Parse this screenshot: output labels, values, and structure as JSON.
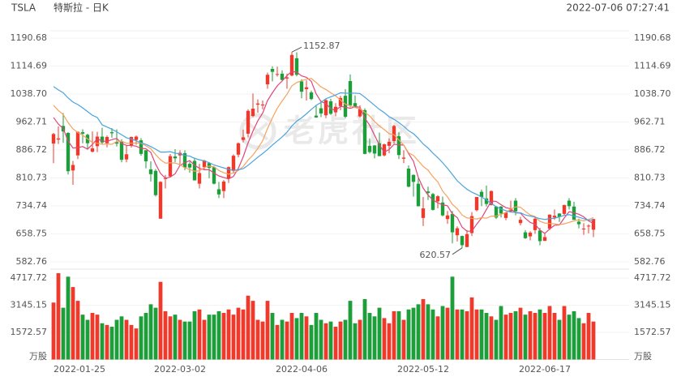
{
  "chart_data": {
    "type": "candlestick",
    "symbol": "TSLA",
    "name": "特斯拉 - 日K",
    "timestamp": "2022-07-06 07:27:41",
    "watermark": "老虎社区",
    "categories": [
      null,
      "2022-01-25",
      null,
      null,
      null,
      null,
      null,
      null,
      null,
      null,
      null,
      null,
      null,
      null,
      null,
      null,
      null,
      null,
      null,
      null,
      null,
      null,
      null,
      null,
      null,
      null,
      "2022-03-02",
      null,
      null,
      null,
      null,
      null,
      null,
      null,
      null,
      null,
      null,
      null,
      null,
      null,
      null,
      null,
      null,
      null,
      null,
      null,
      null,
      null,
      null,
      null,
      null,
      "2022-04-06",
      null,
      null,
      null,
      null,
      null,
      null,
      null,
      null,
      null,
      null,
      null,
      null,
      null,
      null,
      null,
      null,
      null,
      null,
      null,
      null,
      null,
      null,
      null,
      null,
      "2022-05-12",
      null,
      null,
      null,
      null,
      null,
      null,
      null,
      null,
      null,
      null,
      null,
      null,
      null,
      null,
      null,
      null,
      null,
      null,
      null,
      null,
      null,
      null,
      null,
      null,
      "2022-06-17",
      null,
      null,
      null,
      null,
      null,
      null,
      null,
      null,
      null,
      null
    ],
    "open": [
      904,
      915,
      952,
      933,
      831,
      872,
      935,
      928,
      882,
      897,
      923,
      905,
      935,
      908,
      909,
      861,
      900,
      914,
      913,
      886,
      834,
      830,
      700,
      809,
      815,
      869,
      872,
      878,
      849,
      857,
      795,
      840,
      851,
      840,
      780,
      775,
      809,
      830,
      874,
      914,
      931,
      979,
      1010,
      1009,
      1065,
      1107,
      1091,
      1094,
      1081,
      1089,
      1136,
      1073,
      1052,
      1043,
      980,
      1000,
      981,
      1019,
      989,
      1006,
      1034,
      1074,
      1014,
      978,
      995,
      898,
      899,
      905,
      872,
      898,
      911,
      924,
      863,
      836,
      819,
      795,
      702,
      774,
      767,
      747,
      744,
      699,
      713,
      655,
      653,
      623,
      661,
      723,
      773,
      755,
      737,
      733,
      733,
      702,
      720,
      749,
      688,
      663,
      652,
      669,
      668,
      640,
      673,
      703,
      714,
      713,
      749,
      733,
      692,
      673,
      681,
      670
    ],
    "high": [
      933,
      951,
      987,
      935,
      857,
      937,
      943,
      931,
      937,
      936,
      947,
      926,
      946,
      943,
      916,
      898,
      923,
      926,
      919,
      886,
      856,
      835,
      802,
      819,
      876,
      889,
      886,
      886,
      855,
      866,
      849,
      860,
      854,
      843,
      800,
      805,
      842,
      875,
      907,
      942,
      997,
      1040,
      1024,
      1021,
      1097,
      1114,
      1113,
      1103,
      1094,
      1152.87,
      1152,
      1079,
      1076,
      1048,
      1008,
      1021,
      1026,
      1026,
      1014,
      1034,
      1052,
      1092,
      1035,
      1008,
      1000,
      918,
      900,
      934,
      904,
      918,
      955,
      935,
      886,
      845,
      820,
      810,
      759,
      787,
      770,
      764,
      760,
      721,
      721,
      679,
      654,
      669,
      718,
      759,
      779,
      790,
      777,
      734,
      734,
      719,
      749,
      756,
      705,
      669,
      666,
      706,
      675,
      662,
      712,
      725,
      715,
      738,
      756,
      746,
      700,
      688,
      685,
      700
    ],
    "low": [
      851,
      903,
      906,
      820,
      792,
      862,
      905,
      889,
      880,
      881,
      902,
      894,
      920,
      896,
      853,
      853,
      893,
      901,
      871,
      837,
      801,
      760,
      700,
      782,
      814,
      853,
      844,
      832,
      825,
      804,
      782,
      832,
      810,
      793,
      756,
      756,
      797,
      825,
      867,
      907,
      921,
      976,
      988,
      997,
      1053,
      1073,
      1086,
      1076,
      1053,
      1087,
      1087,
      1027,
      1021,
      1022,
      974,
      976,
      973,
      982,
      978,
      995,
      973,
      1003,
      1003,
      975,
      875,
      877,
      864,
      870,
      869,
      878,
      904,
      862,
      851,
      785,
      760,
      733,
      680,
      751,
      722,
      728,
      706,
      686,
      633,
      638,
      620.57,
      623,
      653,
      720,
      734,
      733,
      736,
      699,
      703,
      696,
      718,
      709,
      682,
      645,
      641,
      659,
      628,
      639,
      669,
      697,
      691,
      709,
      725,
      697,
      674,
      656,
      660,
      650
    ],
    "close": [
      930,
      918,
      937,
      829,
      846,
      936,
      931,
      905,
      891,
      923,
      907,
      922,
      932,
      904,
      860,
      875,
      922,
      923,
      876,
      856,
      821,
      764,
      800,
      810,
      870,
      864,
      879,
      839,
      839,
      804,
      824,
      858,
      838,
      795,
      766,
      801,
      840,
      871,
      905,
      921,
      993,
      999,
      1013,
      1010,
      1091,
      1099,
      1093,
      1077,
      1084,
      1145,
      1091,
      1045,
      1057,
      1025,
      975,
      986,
      1022,
      985,
      1004,
      1028,
      977,
      1008,
      1005,
      998,
      876,
      881,
      877,
      870,
      902,
      909,
      952,
      873,
      866,
      787,
      800,
      734,
      728,
      770,
      724,
      761,
      709,
      709,
      663,
      674,
      628,
      658,
      707,
      759,
      759,
      740,
      775,
      703,
      714,
      717,
      725,
      720,
      697,
      647,
      662,
      700,
      639,
      650,
      711,
      708,
      705,
      737,
      734,
      697,
      685,
      673,
      681,
      699
    ],
    "volume": [
      3300,
      5000,
      3000,
      4800,
      4200,
      3400,
      2600,
      2300,
      2700,
      2600,
      2100,
      2000,
      1900,
      2300,
      2500,
      2300,
      2000,
      1800,
      2500,
      2700,
      3200,
      3000,
      4500,
      2800,
      2500,
      2600,
      2300,
      2200,
      2200,
      2800,
      2900,
      2300,
      2600,
      2600,
      2800,
      2700,
      2900,
      2600,
      3000,
      2900,
      3700,
      3400,
      2300,
      2200,
      3400,
      2700,
      2000,
      2300,
      2200,
      2700,
      2400,
      2700,
      2500,
      2000,
      2700,
      2300,
      2100,
      2200,
      1900,
      2200,
      2300,
      3400,
      2100,
      2300,
      3500,
      2700,
      2500,
      3000,
      2400,
      2100,
      2800,
      2800,
      2300,
      2900,
      3000,
      3200,
      3500,
      3200,
      2900,
      2500,
      3100,
      3000,
      4800,
      2900,
      2900,
      2800,
      3600,
      2900,
      2900,
      2700,
      2500,
      2300,
      3100,
      2600,
      2700,
      2800,
      3000,
      2600,
      2800,
      2700,
      2900,
      2700,
      3100,
      2700,
      2300,
      3100,
      2600,
      2800,
      2400,
      2100,
      2700,
      2200
    ],
    "ma": [
      {
        "color": "#e0457b",
        "values": [
          975,
          957,
          945,
          911,
          892,
          893,
          896,
          889,
          902,
          917,
          911,
          910,
          915,
          918,
          905,
          899,
          899,
          897,
          891,
          890,
          880,
          848,
          823,
          810,
          813,
          822,
          845,
          852,
          858,
          845,
          837,
          833,
          833,
          824,
          816,
          812,
          808,
          815,
          837,
          868,
          906,
          938,
          966,
          987,
          1021,
          1042,
          1061,
          1074,
          1089,
          1100,
          1098,
          1088,
          1084,
          1073,
          1039,
          1018,
          1013,
          999,
          994,
          1005,
          1003,
          1000,
          1004,
          1003,
          973,
          954,
          927,
          900,
          881,
          888,
          902,
          901,
          900,
          877,
          856,
          812,
          783,
          764,
          751,
          743,
          738,
          735,
          713,
          703,
          677,
          666,
          666,
          685,
          702,
          725,
          748,
          747,
          738,
          730,
          727,
          716,
          715,
          701,
          690,
          685,
          669,
          660,
          672,
          682,
          683,
          702,
          719,
          716,
          712,
          705,
          694,
          687
        ]
      },
      {
        "color": "#f5a25d",
        "values": [
          1008,
          994,
          983,
          961,
          944,
          934,
          927,
          917,
          907,
          905,
          902,
          903,
          902,
          910,
          911,
          905,
          905,
          906,
          905,
          898,
          890,
          874,
          860,
          851,
          852,
          851,
          847,
          838,
          834,
          829,
          830,
          839,
          843,
          841,
          831,
          825,
          821,
          824,
          831,
          842,
          859,
          873,
          891,
          912,
          945,
          974,
          1000,
          1020,
          1038,
          1061,
          1070,
          1075,
          1079,
          1081,
          1070,
          1058,
          1051,
          1042,
          1034,
          1022,
          1011,
          1007,
          1002,
          999,
          989,
          979,
          964,
          952,
          942,
          931,
          928,
          914,
          900,
          879,
          872,
          857,
          842,
          832,
          814,
          800,
          775,
          759,
          739,
          727,
          710,
          702,
          701,
          699,
          703,
          701,
          707,
          707,
          712,
          716,
          726,
          732,
          731,
          720,
          710,
          706,
          693,
          688,
          687,
          686,
          684,
          686,
          690,
          694,
          697,
          694,
          698,
          703
        ]
      },
      {
        "color": "#4aa3df",
        "values": [
          1059,
          1050,
          1042,
          1028,
          1017,
          1010,
          1001,
          991,
          981,
          975,
          955,
          949,
          943,
          936,
          928,
          920,
          916,
          912,
          906,
          902,
          896,
          889,
          881,
          881,
          882,
          878,
          876,
          872,
          870,
          864,
          860,
          857,
          852,
          846,
          842,
          838,
          834,
          831,
          833,
          836,
          845,
          856,
          867,
          877,
          888,
          900,
          911,
          922,
          935,
          952,
          965,
          974,
          985,
          997,
          1008,
          1016,
          1026,
          1031,
          1036,
          1042,
          1041,
          1041,
          1041,
          1040,
          1030,
          1019,
          1008,
          997,
          988,
          977,
          970,
          961,
          951,
          939,
          931,
          918,
          903,
          892,
          878,
          866,
          852,
          837,
          820,
          803,
          791,
          780,
          772,
          766,
          759,
          751,
          741,
          733,
          726,
          722,
          718,
          717,
          716,
          710,
          707,
          704,
          700,
          698,
          700,
          701,
          705,
          709,
          711,
          707,
          704,
          700,
          696,
          696
        ]
      }
    ],
    "up_color": "#ec3a2c",
    "down_color": "#1e9e3a",
    "ylim": [
      567.34,
      1210.5
    ],
    "yticks": [
      582.76,
      658.75,
      734.74,
      810.73,
      886.72,
      962.71,
      {
        "value": 1038.7,
        "label": "1038.70"
      },
      1114.69,
      1190.68
    ],
    "volume_ylim": [
      0,
      5190
    ],
    "volume_yticks": [
      1572.57,
      3145.15,
      4717.72
    ],
    "volume_unit": "万股",
    "grid": true
  }
}
